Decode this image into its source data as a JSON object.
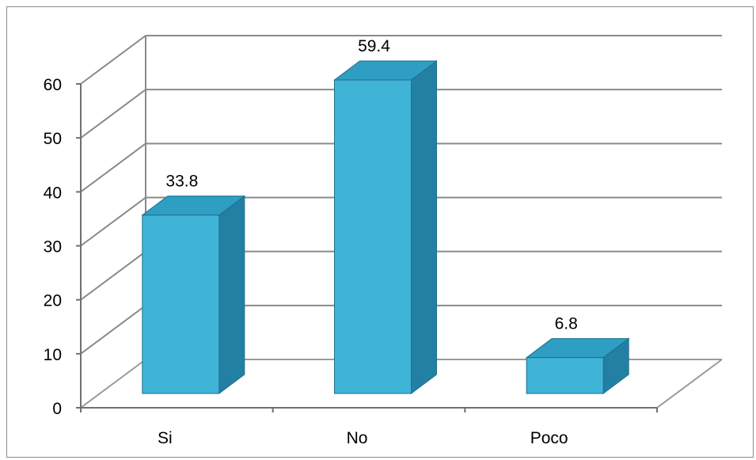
{
  "chart_data": {
    "type": "bar",
    "style": "3d-column",
    "categories": [
      "Si",
      "No",
      "Poco"
    ],
    "values": [
      33.8,
      59.4,
      6.8
    ],
    "data_labels": [
      "33.8",
      "59.4",
      "6.8"
    ],
    "y_ticks": [
      "0",
      "10",
      "20",
      "30",
      "40",
      "50",
      "60"
    ],
    "ylim": [
      0,
      60
    ],
    "grid": true,
    "legend": "none",
    "colors": {
      "bar_front": "#3fb4d6",
      "bar_top": "#2e9fc3",
      "bar_side": "#2380a3",
      "bar_edge": "#1f6f8f",
      "grid": "#8a8a8a",
      "axis": "#707070",
      "wall_edge": "#9a9a9a"
    }
  }
}
